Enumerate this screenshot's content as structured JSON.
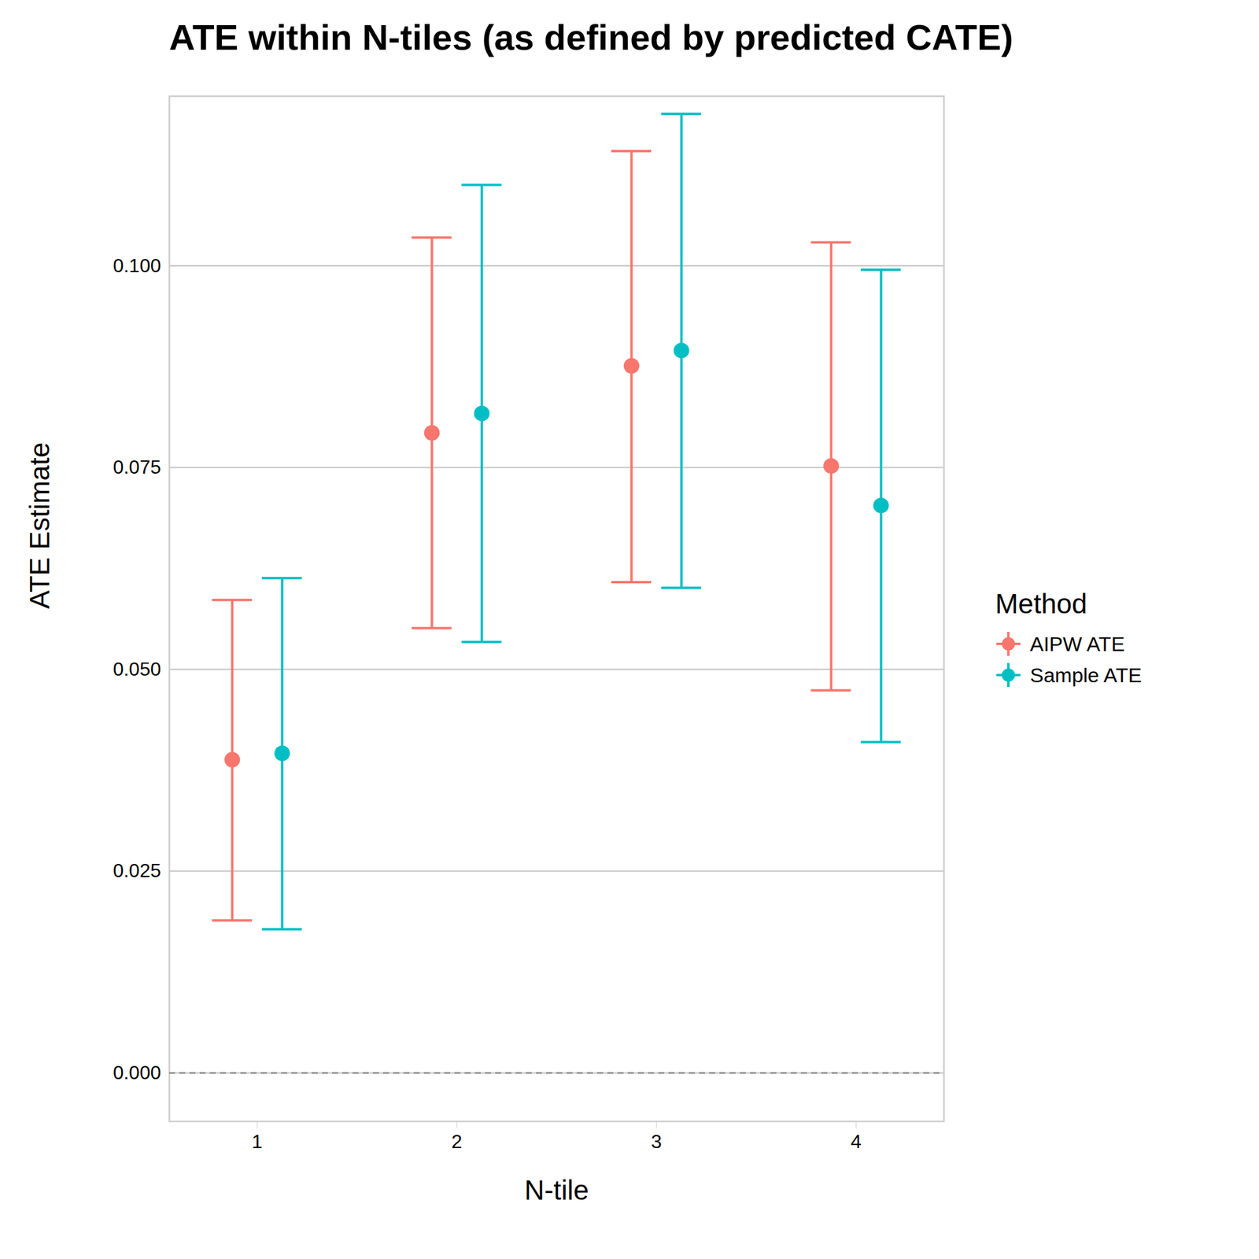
{
  "chart_data": {
    "type": "errorbar",
    "title": "ATE within N-tiles (as defined by predicted CATE)",
    "x_label": "N-tile",
    "y_label": "ATE Estimate",
    "legend_title": "Method",
    "categories": [
      "1",
      "2",
      "3",
      "4"
    ],
    "series": [
      {
        "name": "AIPW ATE",
        "color": "#F8766D",
        "marker": "circle",
        "values": [
          0.0388,
          0.0793,
          0.0876,
          0.0752
        ],
        "lower": [
          0.0189,
          0.0551,
          0.0608,
          0.0474
        ],
        "upper": [
          0.0586,
          0.1035,
          0.1142,
          0.1029
        ]
      },
      {
        "name": "Sample ATE",
        "color": "#00BFC4",
        "marker": "circle",
        "values": [
          0.0396,
          0.0817,
          0.0895,
          0.0703
        ],
        "lower": [
          0.0178,
          0.0534,
          0.0601,
          0.041
        ],
        "upper": [
          0.0613,
          0.11,
          0.1188,
          0.0995
        ]
      }
    ],
    "ylim": [
      -0.006,
      0.121
    ],
    "yticks": [
      {
        "value": 0,
        "label": "0.000"
      },
      {
        "value": 0.025,
        "label": "0.025"
      },
      {
        "value": 0.05,
        "label": "0.050"
      },
      {
        "value": 0.075,
        "label": "0.075"
      },
      {
        "value": 0.1,
        "label": "0.100"
      }
    ],
    "reference_line": 0,
    "grid": true,
    "legend": "right"
  }
}
